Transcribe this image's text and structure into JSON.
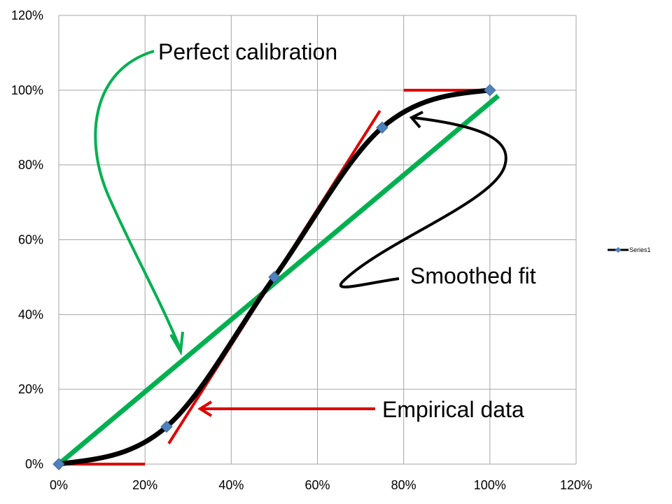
{
  "chart_data": {
    "type": "scatter",
    "title": "",
    "xlabel": "",
    "ylabel": "",
    "xlim": [
      0,
      1.2
    ],
    "ylim": [
      0,
      1.2
    ],
    "grid": true,
    "x_ticks": [
      "0%",
      "20%",
      "40%",
      "60%",
      "80%",
      "100%",
      "120%"
    ],
    "y_ticks": [
      "0%",
      "20%",
      "40%",
      "60%",
      "80%",
      "100%",
      "120%"
    ],
    "legend": {
      "position": "right",
      "entries": [
        "Series1"
      ]
    },
    "series": [
      {
        "name": "Series1",
        "style": "smoothed line with diamond markers",
        "x": [
          0,
          0.25,
          0.5,
          0.75,
          1.0
        ],
        "y": [
          0,
          0.1,
          0.5,
          0.9,
          1.0
        ]
      }
    ],
    "reference_lines": [
      {
        "role": "perfect calibration",
        "x": [
          0,
          1.0
        ],
        "y": [
          0,
          1.0
        ]
      }
    ],
    "tangent_segments": [
      {
        "x": [
          0,
          0.2
        ],
        "y": [
          0,
          0
        ]
      },
      {
        "x": [
          0.255,
          0.745
        ],
        "y": [
          0.055,
          0.945
        ]
      },
      {
        "x": [
          0.8,
          1.0
        ],
        "y": [
          1.0,
          1.0
        ]
      }
    ],
    "annotations": [
      {
        "text": "Perfect calibration"
      },
      {
        "text": "Smoothed fit"
      },
      {
        "text": "Empirical data"
      }
    ],
    "colors": {
      "fit_line": "#000000",
      "markers": "#4F81BD",
      "perfect_calibration": "#00B050",
      "tangents": "#E00000",
      "grid": "#A6A6A6"
    }
  }
}
